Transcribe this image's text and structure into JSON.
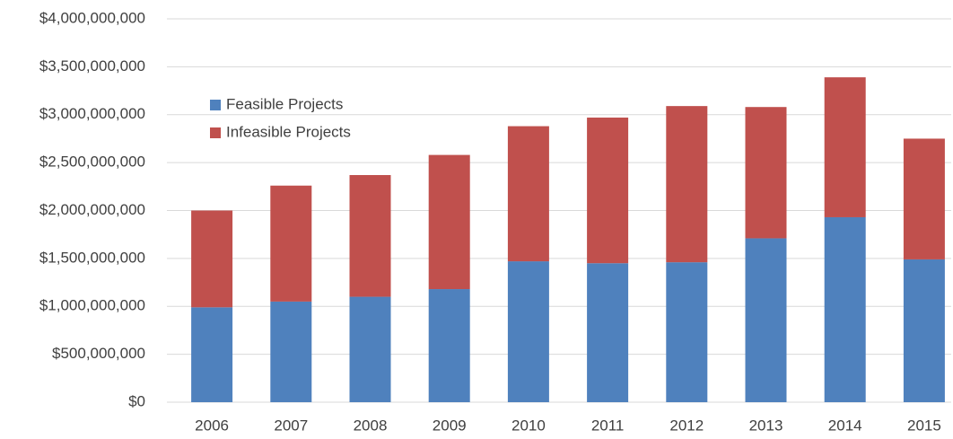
{
  "chart_data": {
    "type": "stacked_bar",
    "categories": [
      "2006",
      "2007",
      "2008",
      "2009",
      "2010",
      "2011",
      "2012",
      "2013",
      "2014",
      "2015"
    ],
    "series": [
      {
        "name": "Feasible Projects",
        "color": "#4f81bd",
        "values": [
          990000000,
          1050000000,
          1100000000,
          1180000000,
          1470000000,
          1450000000,
          1460000000,
          1710000000,
          1930000000,
          1490000000
        ]
      },
      {
        "name": "Infeasible Projects",
        "color": "#c0504d",
        "values": [
          1010000000,
          1210000000,
          1270000000,
          1400000000,
          1410000000,
          1520000000,
          1630000000,
          1370000000,
          1460000000,
          1260000000
        ]
      }
    ],
    "ylim": [
      0,
      4000000000
    ],
    "yticks": [
      {
        "value": 0,
        "label": "$0"
      },
      {
        "value": 500000000,
        "label": "$500,000,000"
      },
      {
        "value": 1000000000,
        "label": "$1,000,000,000"
      },
      {
        "value": 1500000000,
        "label": "$1,500,000,000"
      },
      {
        "value": 2000000000,
        "label": "$2,000,000,000"
      },
      {
        "value": 2500000000,
        "label": "$2,500,000,000"
      },
      {
        "value": 3000000000,
        "label": "$3,000,000,000"
      },
      {
        "value": 3500000000,
        "label": "$3,500,000,000"
      },
      {
        "value": 4000000000,
        "label": "$4,000,000,000"
      }
    ],
    "grid": true,
    "legend": "upper left"
  }
}
